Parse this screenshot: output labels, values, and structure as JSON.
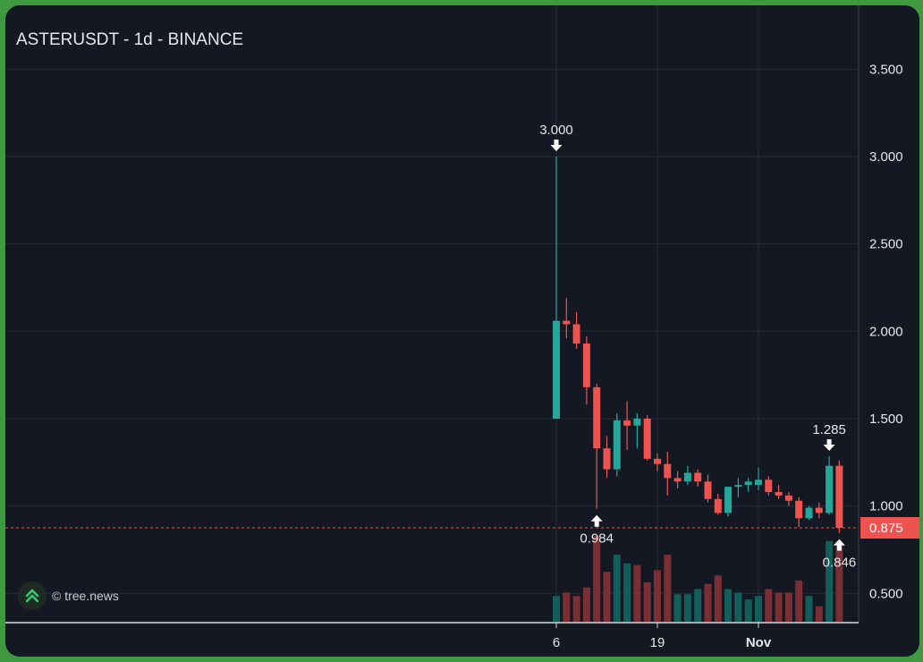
{
  "title": "ASTERUSDT - 1d - BINANCE",
  "watermark": "© tree.news",
  "colors": {
    "up": "#26a69a",
    "down": "#ef5350",
    "up_volume": "#135e5a",
    "down_volume": "#7a2f34",
    "grid": "#262b38",
    "background": "#141822",
    "price_line": "#ef5350"
  },
  "chart_data": {
    "type": "candlestick",
    "title": "ASTERUSDT - 1d - BINANCE",
    "yticks": [
      "0.500",
      "1.000",
      "1.500",
      "2.000",
      "2.500",
      "3.000",
      "3.500"
    ],
    "xticks": [
      "6",
      "19",
      "Nov"
    ],
    "ylim": [
      0.33,
      3.85
    ],
    "last_price": "0.875",
    "annotations": [
      {
        "label": "3.000",
        "value": 3.0,
        "kind": "high",
        "index": 0
      },
      {
        "label": "0.984",
        "value": 0.984,
        "kind": "low",
        "index": 4
      },
      {
        "label": "1.285",
        "value": 1.285,
        "kind": "high",
        "index": 27
      },
      {
        "label": "0.846",
        "value": 0.846,
        "kind": "low",
        "index": 28
      }
    ],
    "candles": [
      {
        "o": 1.5,
        "h": 3.0,
        "l": 1.5,
        "c": 2.06
      },
      {
        "o": 2.06,
        "h": 2.19,
        "l": 1.96,
        "c": 2.04
      },
      {
        "o": 2.04,
        "h": 2.11,
        "l": 1.9,
        "c": 1.93
      },
      {
        "o": 1.93,
        "h": 1.97,
        "l": 1.58,
        "c": 1.68
      },
      {
        "o": 1.68,
        "h": 1.7,
        "l": 0.984,
        "c": 1.33
      },
      {
        "o": 1.33,
        "h": 1.4,
        "l": 1.16,
        "c": 1.21
      },
      {
        "o": 1.21,
        "h": 1.53,
        "l": 1.17,
        "c": 1.49
      },
      {
        "o": 1.49,
        "h": 1.6,
        "l": 1.32,
        "c": 1.46
      },
      {
        "o": 1.46,
        "h": 1.53,
        "l": 1.33,
        "c": 1.5
      },
      {
        "o": 1.5,
        "h": 1.52,
        "l": 1.26,
        "c": 1.27
      },
      {
        "o": 1.27,
        "h": 1.3,
        "l": 1.2,
        "c": 1.24
      },
      {
        "o": 1.24,
        "h": 1.31,
        "l": 1.06,
        "c": 1.16
      },
      {
        "o": 1.16,
        "h": 1.2,
        "l": 1.1,
        "c": 1.14
      },
      {
        "o": 1.14,
        "h": 1.23,
        "l": 1.12,
        "c": 1.19
      },
      {
        "o": 1.19,
        "h": 1.21,
        "l": 1.11,
        "c": 1.14
      },
      {
        "o": 1.14,
        "h": 1.18,
        "l": 1.02,
        "c": 1.04
      },
      {
        "o": 1.04,
        "h": 1.07,
        "l": 0.95,
        "c": 0.96
      },
      {
        "o": 0.96,
        "h": 1.1,
        "l": 0.94,
        "c": 1.11
      },
      {
        "o": 1.11,
        "h": 1.16,
        "l": 1.05,
        "c": 1.12
      },
      {
        "o": 1.12,
        "h": 1.16,
        "l": 1.08,
        "c": 1.14
      },
      {
        "o": 1.12,
        "h": 1.22,
        "l": 1.09,
        "c": 1.15
      },
      {
        "o": 1.15,
        "h": 1.17,
        "l": 1.06,
        "c": 1.08
      },
      {
        "o": 1.08,
        "h": 1.12,
        "l": 1.04,
        "c": 1.06
      },
      {
        "o": 1.06,
        "h": 1.08,
        "l": 1.0,
        "c": 1.03
      },
      {
        "o": 1.03,
        "h": 1.05,
        "l": 0.88,
        "c": 0.93
      },
      {
        "o": 0.93,
        "h": 1.0,
        "l": 0.92,
        "c": 0.99
      },
      {
        "o": 0.99,
        "h": 1.02,
        "l": 0.93,
        "c": 0.96
      },
      {
        "o": 0.96,
        "h": 1.285,
        "l": 0.95,
        "c": 1.23
      },
      {
        "o": 1.23,
        "h": 1.26,
        "l": 0.846,
        "c": 0.875
      }
    ],
    "volume_dir": [
      "up",
      "down",
      "down",
      "down",
      "down",
      "down",
      "up",
      "up",
      "down",
      "down",
      "down",
      "down",
      "up",
      "up",
      "up",
      "down",
      "down",
      "up",
      "up",
      "up",
      "up",
      "down",
      "down",
      "down",
      "down",
      "up",
      "down",
      "up",
      "down"
    ],
    "volume": [
      30,
      34,
      30,
      40,
      100,
      58,
      78,
      68,
      66,
      46,
      60,
      78,
      32,
      32,
      38,
      44,
      54,
      38,
      34,
      26,
      30,
      38,
      34,
      34,
      48,
      30,
      18,
      94,
      92
    ]
  }
}
